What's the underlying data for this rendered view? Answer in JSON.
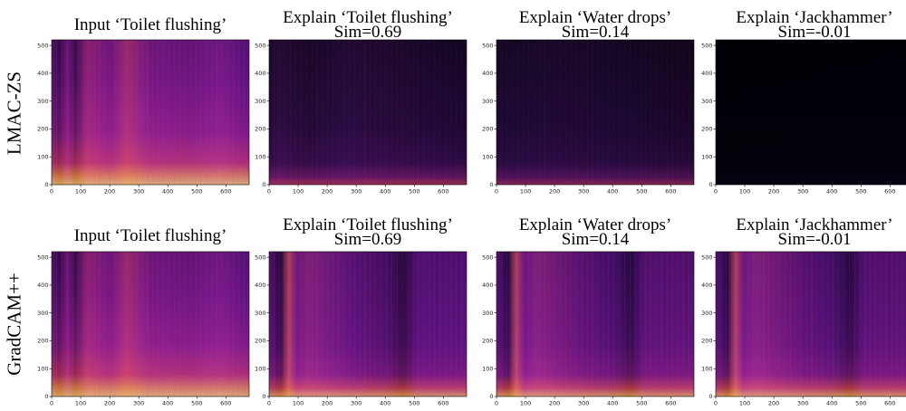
{
  "row_labels": [
    "LMAC-ZS",
    "GradCAM++"
  ],
  "rows": [
    {
      "panels": [
        {
          "line1": "Input ‘Toilet flushing’",
          "line2": "",
          "variant": "input"
        },
        {
          "line1": "Explain ‘Toilet flushing’",
          "line2": "Sim=0.69",
          "variant": "lmac_bright"
        },
        {
          "line1": "Explain ‘Water drops’",
          "line2": "Sim=0.14",
          "variant": "lmac_dim"
        },
        {
          "line1": "Explain ‘Jackhammer’",
          "line2": "Sim=-0.01",
          "variant": "black"
        }
      ]
    },
    {
      "panels": [
        {
          "line1": "Input ‘Toilet flushing’",
          "line2": "",
          "variant": "input"
        },
        {
          "line1": "Explain ‘Toilet flushing’",
          "line2": "Sim=0.69",
          "variant": "gradcam"
        },
        {
          "line1": "Explain ‘Water drops’",
          "line2": "Sim=0.14",
          "variant": "gradcam"
        },
        {
          "line1": "Explain ‘Jackhammer’",
          "line2": "Sim=-0.01",
          "variant": "gradcam"
        }
      ]
    }
  ],
  "axes": {
    "x_ticks": [
      "0",
      "100",
      "200",
      "300",
      "400",
      "500",
      "600"
    ],
    "y_ticks": [
      "0",
      "100",
      "200",
      "300",
      "400",
      "500"
    ]
  },
  "colormap": "inferno"
}
